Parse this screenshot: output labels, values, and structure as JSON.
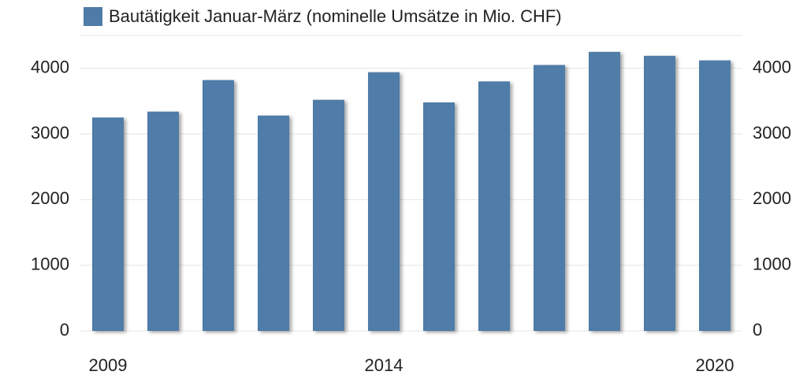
{
  "chart_data": {
    "type": "bar",
    "legend": "Bautätigkeit Januar-März (nominelle Umsätze in Mio. CHF)",
    "categories": [
      "2009",
      null,
      null,
      null,
      null,
      "2014",
      null,
      null,
      null,
      null,
      null,
      "2020"
    ],
    "values": [
      3250,
      3340,
      3820,
      3280,
      3520,
      3940,
      3480,
      3800,
      4050,
      4250,
      4190,
      4120
    ],
    "color": "#4f7ba8",
    "ylim": [
      0,
      4500
    ],
    "yticks": [
      0,
      1000,
      2000,
      3000,
      4000
    ],
    "grid": true,
    "right_axis_labels": true
  }
}
